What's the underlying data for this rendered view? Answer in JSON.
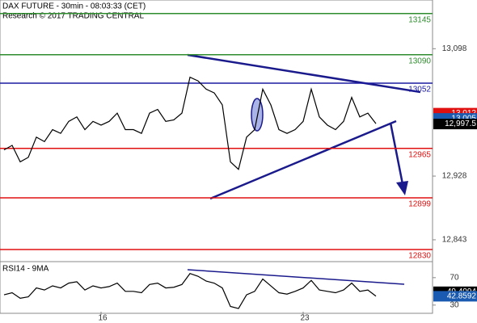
{
  "chart_data": [
    {
      "type": "line",
      "title": "DAX FUTURE - 30min - 08:03:33 (CET)",
      "subtitle": "Research © 2017 TRADING CENTRAL",
      "xlim": [
        -0.5,
        53
      ],
      "ylim": [
        12816,
        13163
      ],
      "xticks": [
        {
          "value": 12,
          "label": "16"
        },
        {
          "value": 37,
          "label": "23"
        }
      ],
      "yticks": [
        {
          "value": 13098,
          "label": "13,098"
        },
        {
          "value": 12928,
          "label": "12,928"
        },
        {
          "value": 12843,
          "label": "12,843"
        }
      ],
      "levels": [
        {
          "value": 13145,
          "color": "#2e8b2e"
        },
        {
          "value": 13090,
          "color": "#2e8b2e"
        },
        {
          "value": 13052,
          "color": "#1a1aa0"
        },
        {
          "value": 12965,
          "color": "#e01010"
        },
        {
          "value": 12899,
          "color": "#e01010"
        },
        {
          "value": 12830,
          "color": "#e01010"
        }
      ],
      "tags": [
        {
          "value": 13012,
          "label": "13,012",
          "color": "#e01010"
        },
        {
          "value": 13005,
          "label": "13,005",
          "color": "#1a5ab0"
        },
        {
          "value": 12997.5,
          "label": "12,997.5",
          "color": "#000000"
        }
      ],
      "series": [
        {
          "color": "#000000",
          "values": [
            12963,
            12969,
            12947,
            12953,
            12980,
            12974,
            12990,
            12985,
            13001,
            13007,
            12990,
            13001,
            12996,
            13001,
            13012,
            12990,
            12990,
            12985,
            13012,
            13017,
            13001,
            13003,
            13012,
            13060,
            13055,
            13044,
            13039,
            13023,
            12947,
            12937,
            12980,
            12990,
            13044,
            13023,
            12990,
            12985,
            12990,
            13001,
            13044,
            13007,
            12996,
            12990,
            13001,
            13033,
            13007,
            13012,
            12998
          ]
        }
      ]
    },
    {
      "type": "line",
      "title": "RSI14 - 9MA",
      "xlim": [
        -0.5,
        53
      ],
      "ylim": [
        18,
        91
      ],
      "yticks": [
        70,
        30
      ],
      "tags": [
        {
          "value": 49.4094,
          "color": "#000000"
        },
        {
          "value": 42.8592,
          "color": "#1a5ab0"
        }
      ],
      "series": [
        {
          "color": "#000000",
          "values": [
            45,
            48,
            40,
            42,
            55,
            52,
            58,
            55,
            62,
            64,
            52,
            58,
            55,
            57,
            62,
            50,
            50,
            48,
            60,
            62,
            55,
            56,
            60,
            76,
            72,
            65,
            62,
            55,
            28,
            25,
            45,
            50,
            68,
            58,
            48,
            46,
            50,
            55,
            66,
            52,
            50,
            48,
            52,
            62,
            50,
            52,
            43
          ]
        }
      ]
    }
  ]
}
